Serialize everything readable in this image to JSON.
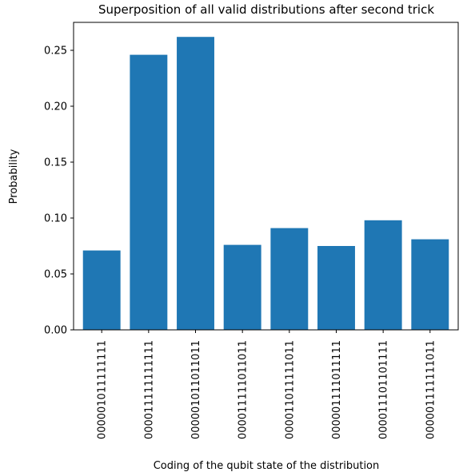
{
  "chart_data": {
    "type": "bar",
    "title": "Superposition of all valid distributions after second trick",
    "xlabel": "Coding of the qubit state of the distribution",
    "ylabel": "Probability",
    "categories": [
      "000001011111111",
      "000011111111111",
      "000001011011011",
      "000011111011011",
      "000011011111011",
      "000001111011111",
      "000011101101111",
      "000001111111011"
    ],
    "values": [
      0.071,
      0.246,
      0.262,
      0.076,
      0.091,
      0.075,
      0.098,
      0.081
    ],
    "ylim": [
      0,
      0.275
    ],
    "yticks": [
      0.0,
      0.05,
      0.1,
      0.15,
      0.2,
      0.25
    ],
    "ytick_labels": [
      "0.00",
      "0.05",
      "0.10",
      "0.15",
      "0.20",
      "0.25"
    ],
    "bar_color": "#1f77b4",
    "grid": false,
    "legend": "none"
  }
}
